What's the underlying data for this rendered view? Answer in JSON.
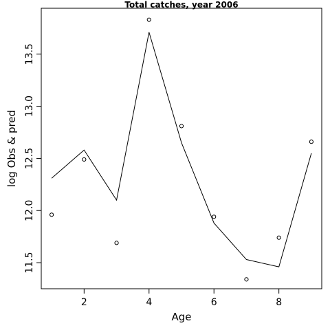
{
  "chart_data": {
    "type": "scatter",
    "title": "Total catches, year 2006",
    "xlabel": "Age",
    "ylabel": "log Obs & pred",
    "xlim": [
      0.68,
      9.32
    ],
    "ylim": [
      11.25,
      13.94
    ],
    "x_ticks": [
      2,
      4,
      6,
      8
    ],
    "x_tick_labels": [
      "2",
      "4",
      "6",
      "8"
    ],
    "y_ticks": [
      11.5,
      12.0,
      12.5,
      13.0,
      13.5
    ],
    "y_tick_labels": [
      "11.5",
      "12.0",
      "12.5",
      "13.0",
      "13.5"
    ],
    "grid": false,
    "series": [
      {
        "style": "points",
        "x": [
          1,
          2,
          3,
          4,
          5,
          6,
          7,
          8,
          9
        ],
        "y": [
          11.96,
          12.49,
          11.69,
          13.83,
          12.81,
          11.94,
          11.34,
          11.74,
          12.66
        ]
      },
      {
        "style": "line",
        "x": [
          1,
          2,
          3,
          4,
          5,
          6,
          7,
          8,
          9
        ],
        "y": [
          12.31,
          12.58,
          12.1,
          13.71,
          12.65,
          11.88,
          11.53,
          11.46,
          12.55
        ]
      }
    ]
  }
}
